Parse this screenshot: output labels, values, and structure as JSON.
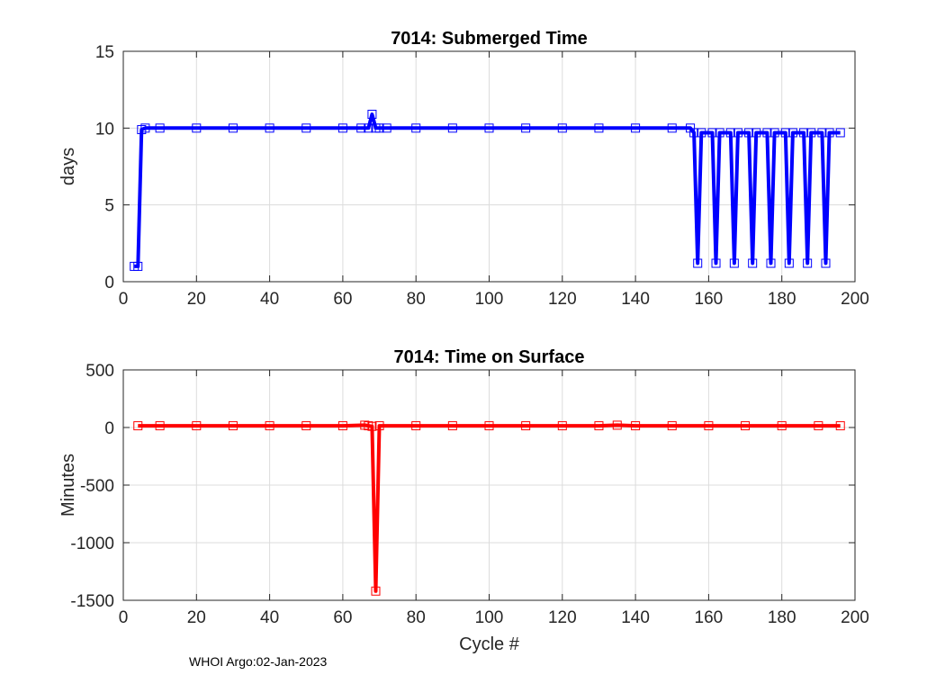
{
  "footer": "WHOI Argo:02-Jan-2023",
  "chart_data": [
    {
      "type": "line",
      "title": "7014: Submerged Time",
      "xlabel": "",
      "ylabel": "days",
      "xlim": [
        0,
        200
      ],
      "ylim": [
        0,
        15
      ],
      "xticks": [
        0,
        20,
        40,
        60,
        80,
        100,
        120,
        140,
        160,
        180,
        200
      ],
      "yticks": [
        0,
        5,
        10,
        15
      ],
      "xtick_labels": [
        "0",
        "20",
        "40",
        "60",
        "80",
        "100",
        "120",
        "140",
        "160",
        "180",
        "200"
      ],
      "ytick_labels": [
        "0",
        "5",
        "10",
        "15"
      ],
      "grid": true,
      "color": "#0000ff",
      "marker": "square",
      "series": [
        {
          "name": "Submerged Time",
          "x": [
            3,
            4,
            5,
            6,
            10,
            20,
            30,
            40,
            50,
            60,
            65,
            67,
            68,
            69,
            70,
            72,
            80,
            90,
            100,
            110,
            120,
            130,
            140,
            150,
            155,
            156,
            157,
            158,
            161,
            162,
            163,
            166,
            167,
            168,
            171,
            172,
            173,
            176,
            177,
            178,
            181,
            182,
            183,
            186,
            187,
            188,
            191,
            192,
            193,
            196
          ],
          "y": [
            1.0,
            1.0,
            9.9,
            10.0,
            10.0,
            10.0,
            10.0,
            10.0,
            10.0,
            10.0,
            10.0,
            10.0,
            10.9,
            10.0,
            10.0,
            10.0,
            10.0,
            10.0,
            10.0,
            10.0,
            10.0,
            10.0,
            10.0,
            10.0,
            10.0,
            9.7,
            1.2,
            9.7,
            9.7,
            1.2,
            9.7,
            9.7,
            1.2,
            9.7,
            9.7,
            1.2,
            9.7,
            9.7,
            1.2,
            9.7,
            9.7,
            1.2,
            9.7,
            9.7,
            1.2,
            9.7,
            9.7,
            1.2,
            9.7,
            9.7
          ]
        }
      ]
    },
    {
      "type": "line",
      "title": "7014: Time on Surface",
      "xlabel": "Cycle #",
      "ylabel": "Minutes",
      "xlim": [
        0,
        200
      ],
      "ylim": [
        -1500,
        500
      ],
      "xticks": [
        0,
        20,
        40,
        60,
        80,
        100,
        120,
        140,
        160,
        180,
        200
      ],
      "yticks": [
        500,
        0,
        -500,
        -1000,
        -1500
      ],
      "xtick_labels": [
        "0",
        "20",
        "40",
        "60",
        "80",
        "100",
        "120",
        "140",
        "160",
        "180",
        "200"
      ],
      "ytick_labels": [
        "500",
        "0",
        "-500",
        "-1000",
        "-1500"
      ],
      "grid": true,
      "color": "#ff0000",
      "marker": "square",
      "series": [
        {
          "name": "Time on Surface",
          "x": [
            4,
            10,
            20,
            30,
            40,
            50,
            60,
            66,
            67,
            68,
            69,
            70,
            80,
            90,
            100,
            110,
            120,
            130,
            135,
            140,
            150,
            160,
            170,
            180,
            190,
            196
          ],
          "y": [
            15,
            15,
            15,
            15,
            15,
            15,
            15,
            20,
            15,
            10,
            -1420,
            15,
            15,
            15,
            15,
            15,
            15,
            15,
            20,
            15,
            15,
            15,
            15,
            15,
            15,
            15
          ]
        }
      ]
    }
  ]
}
